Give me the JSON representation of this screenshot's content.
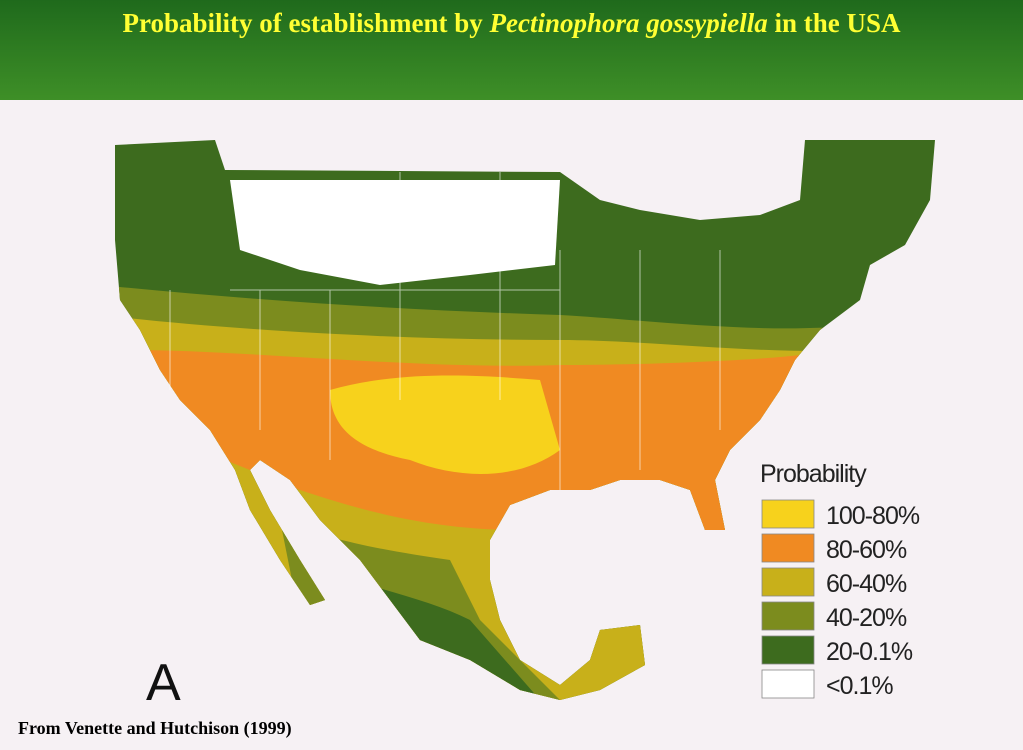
{
  "header": {
    "title": {
      "parts": [
        "Probability of establishment by ",
        "Pectinophora gossypiella",
        " in the USA"
      ]
    }
  },
  "map": {
    "panel_label": "A",
    "legend": {
      "title": "Probability",
      "items": [
        {
          "label": "100-80%",
          "color": "#f7d21c"
        },
        {
          "label": "80-60%",
          "color": "#f08a22"
        },
        {
          "label": "60-40%",
          "color": "#c8b01a"
        },
        {
          "label": "40-20%",
          "color": "#7c8c1e"
        },
        {
          "label": "20-0.1%",
          "color": "#3d6b1e"
        },
        {
          "label": "<0.1%",
          "color": "#ffffff"
        }
      ]
    }
  },
  "footer": {
    "source": "From Venette and Hutchison (1999)"
  }
}
